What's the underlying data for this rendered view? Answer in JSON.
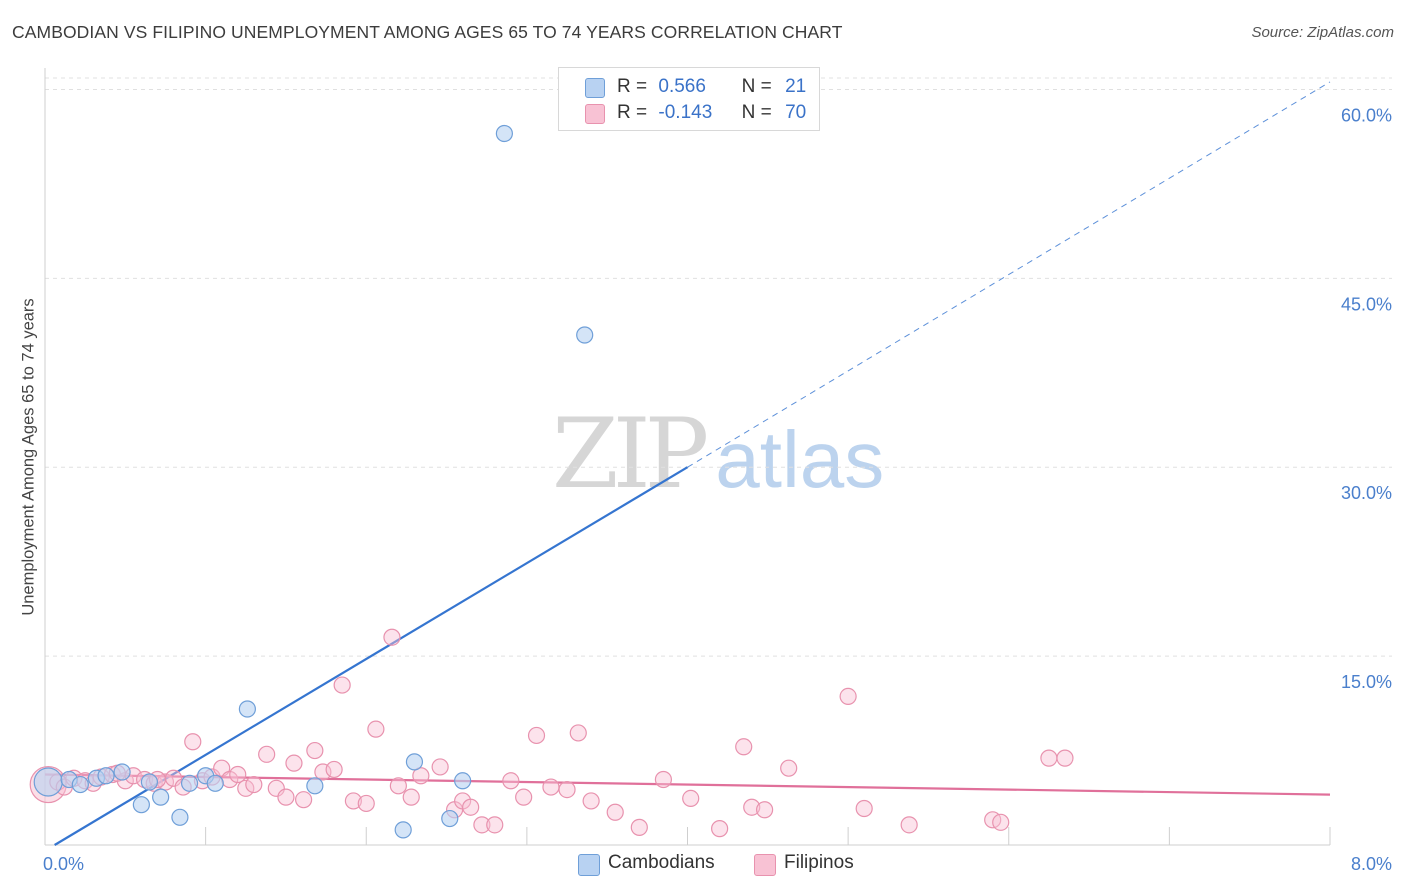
{
  "title": "CAMBODIAN VS FILIPINO UNEMPLOYMENT AMONG AGES 65 TO 74 YEARS CORRELATION CHART",
  "source": "Source: ZipAtlas.com",
  "watermark": {
    "zip": "ZIP",
    "atlas": "atlas"
  },
  "legend_top": {
    "cambodians": {
      "r_label": "R =",
      "r_value": "0.566",
      "n_label": "N =",
      "n_value": "21"
    },
    "filipinos": {
      "r_label": "R =",
      "r_value": "-0.143",
      "n_label": "N =",
      "n_value": "70"
    }
  },
  "legend_bottom": {
    "cambodians": "Cambodians",
    "filipinos": "Filipinos"
  },
  "colors": {
    "cambodians_fill": "#b8d2f2",
    "cambodians_stroke": "#6f9fd8",
    "cambodians_line": "#3575d0",
    "filipinos_fill": "#f8c2d4",
    "filipinos_stroke": "#e892ae",
    "filipinos_line": "#e0709a",
    "axis_label": "#4a7fcc",
    "grid": "#e0e0e0"
  },
  "chart_data": {
    "type": "scatter",
    "title": "CAMBODIAN VS FILIPINO UNEMPLOYMENT AMONG AGES 65 TO 74 YEARS CORRELATION CHART",
    "xlabel": "",
    "ylabel": "Unemployment Among Ages 65 to 74 years",
    "xlim": [
      0,
      8
    ],
    "ylim": [
      0,
      63
    ],
    "x_tick_labels": [
      {
        "value": 0,
        "label": "0.0%"
      },
      {
        "value": 8,
        "label": "8.0%"
      }
    ],
    "y_tick_labels": [
      {
        "value": 15,
        "label": "15.0%"
      },
      {
        "value": 30,
        "label": "30.0%"
      },
      {
        "value": 45,
        "label": "45.0%"
      },
      {
        "value": 60,
        "label": "60.0%"
      }
    ],
    "series": [
      {
        "name": "Cambodians",
        "r": 0.566,
        "n": 21,
        "points": [
          {
            "x": 0.02,
            "y": 5.0,
            "big": true
          },
          {
            "x": 0.15,
            "y": 5.2
          },
          {
            "x": 0.22,
            "y": 4.8
          },
          {
            "x": 0.32,
            "y": 5.3
          },
          {
            "x": 0.38,
            "y": 5.5
          },
          {
            "x": 0.48,
            "y": 5.8
          },
          {
            "x": 0.6,
            "y": 3.2
          },
          {
            "x": 0.65,
            "y": 5.0
          },
          {
            "x": 0.72,
            "y": 3.8
          },
          {
            "x": 0.84,
            "y": 2.2
          },
          {
            "x": 0.9,
            "y": 4.9
          },
          {
            "x": 1.0,
            "y": 5.5
          },
          {
            "x": 1.06,
            "y": 4.9
          },
          {
            "x": 1.26,
            "y": 10.8
          },
          {
            "x": 1.68,
            "y": 4.7
          },
          {
            "x": 2.23,
            "y": 1.2
          },
          {
            "x": 2.3,
            "y": 6.6
          },
          {
            "x": 2.52,
            "y": 2.1
          },
          {
            "x": 2.6,
            "y": 5.1
          },
          {
            "x": 2.86,
            "y": 56.5
          },
          {
            "x": 3.36,
            "y": 40.5
          }
        ],
        "trend": {
          "x0": 0.06,
          "y0": 0.0,
          "x1": 4.0,
          "y1": 30.0,
          "dashed_to_x": 8.0,
          "dashed_to_y": 60.6
        }
      },
      {
        "name": "Filipinos",
        "r": -0.143,
        "n": 70,
        "points": [
          {
            "x": 0.02,
            "y": 4.8,
            "big": true
          },
          {
            "x": 0.08,
            "y": 5.0
          },
          {
            "x": 0.12,
            "y": 4.6
          },
          {
            "x": 0.18,
            "y": 5.3
          },
          {
            "x": 0.25,
            "y": 5.1
          },
          {
            "x": 0.3,
            "y": 4.9
          },
          {
            "x": 0.35,
            "y": 5.4
          },
          {
            "x": 0.42,
            "y": 5.6
          },
          {
            "x": 0.5,
            "y": 5.1
          },
          {
            "x": 0.55,
            "y": 5.5
          },
          {
            "x": 0.62,
            "y": 5.2
          },
          {
            "x": 0.68,
            "y": 4.9
          },
          {
            "x": 0.75,
            "y": 5.0
          },
          {
            "x": 0.8,
            "y": 5.3
          },
          {
            "x": 0.86,
            "y": 4.6
          },
          {
            "x": 0.92,
            "y": 8.2
          },
          {
            "x": 0.98,
            "y": 5.1
          },
          {
            "x": 1.04,
            "y": 5.4
          },
          {
            "x": 1.1,
            "y": 6.1
          },
          {
            "x": 1.15,
            "y": 5.2
          },
          {
            "x": 1.2,
            "y": 5.6
          },
          {
            "x": 1.25,
            "y": 4.5
          },
          {
            "x": 1.3,
            "y": 4.8
          },
          {
            "x": 1.38,
            "y": 7.2
          },
          {
            "x": 1.44,
            "y": 4.5
          },
          {
            "x": 1.5,
            "y": 3.8
          },
          {
            "x": 1.55,
            "y": 6.5
          },
          {
            "x": 1.61,
            "y": 3.6
          },
          {
            "x": 1.68,
            "y": 7.5
          },
          {
            "x": 1.73,
            "y": 5.8
          },
          {
            "x": 1.8,
            "y": 6.0
          },
          {
            "x": 1.85,
            "y": 12.7
          },
          {
            "x": 1.92,
            "y": 3.5
          },
          {
            "x": 2.0,
            "y": 3.3
          },
          {
            "x": 2.06,
            "y": 9.2
          },
          {
            "x": 2.16,
            "y": 16.5
          },
          {
            "x": 2.2,
            "y": 4.7
          },
          {
            "x": 2.28,
            "y": 3.8
          },
          {
            "x": 2.34,
            "y": 5.5
          },
          {
            "x": 2.46,
            "y": 6.2
          },
          {
            "x": 2.55,
            "y": 2.8
          },
          {
            "x": 2.6,
            "y": 3.5
          },
          {
            "x": 2.65,
            "y": 3.0
          },
          {
            "x": 2.72,
            "y": 1.6
          },
          {
            "x": 2.8,
            "y": 1.6
          },
          {
            "x": 2.9,
            "y": 5.1
          },
          {
            "x": 2.98,
            "y": 3.8
          },
          {
            "x": 3.06,
            "y": 8.7
          },
          {
            "x": 3.15,
            "y": 4.6
          },
          {
            "x": 3.25,
            "y": 4.4
          },
          {
            "x": 3.32,
            "y": 8.9
          },
          {
            "x": 3.4,
            "y": 3.5
          },
          {
            "x": 3.55,
            "y": 2.6
          },
          {
            "x": 3.7,
            "y": 1.4
          },
          {
            "x": 3.85,
            "y": 5.2
          },
          {
            "x": 4.02,
            "y": 3.7
          },
          {
            "x": 4.2,
            "y": 1.3
          },
          {
            "x": 4.35,
            "y": 7.8
          },
          {
            "x": 4.4,
            "y": 3.0
          },
          {
            "x": 4.48,
            "y": 2.8
          },
          {
            "x": 4.63,
            "y": 6.1
          },
          {
            "x": 5.0,
            "y": 11.8
          },
          {
            "x": 5.1,
            "y": 2.9
          },
          {
            "x": 5.38,
            "y": 1.6
          },
          {
            "x": 5.9,
            "y": 2.0
          },
          {
            "x": 6.25,
            "y": 6.9
          },
          {
            "x": 6.35,
            "y": 6.9
          },
          {
            "x": 0.45,
            "y": 5.7
          },
          {
            "x": 0.7,
            "y": 5.2
          },
          {
            "x": 5.95,
            "y": 1.8
          }
        ],
        "trend": {
          "x0": 0.0,
          "y0": 5.6,
          "x1": 8.0,
          "y1": 4.0
        }
      }
    ]
  }
}
